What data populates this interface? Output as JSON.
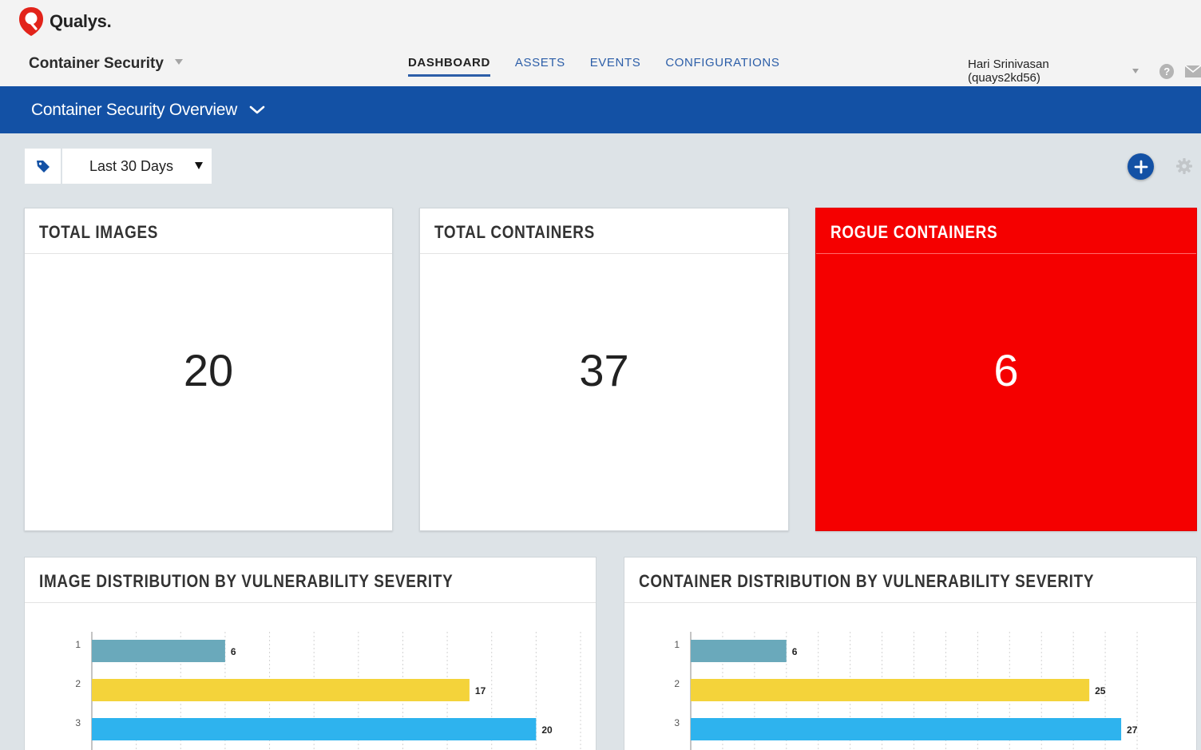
{
  "app": {
    "brand": "Qualys.",
    "module": "Container Security"
  },
  "nav": {
    "tabs": [
      "DASHBOARD",
      "ASSETS",
      "EVENTS",
      "CONFIGURATIONS"
    ],
    "active": "DASHBOARD"
  },
  "user": {
    "name": "Hari Srinivasan (quays2kd56)"
  },
  "dashboard": {
    "title": "Container Security Overview"
  },
  "filters": {
    "date_range": "Last 30 Days"
  },
  "cards": [
    {
      "label": "TOTAL IMAGES",
      "value": "20"
    },
    {
      "label": "TOTAL CONTAINERS",
      "value": "37"
    },
    {
      "label": "ROGUE CONTAINERS",
      "value": "6"
    }
  ],
  "colors": {
    "brand_blue": "#1351a5",
    "rogue_red": "#f50000",
    "sev1": "#6aa9bb",
    "sev2": "#f4d33a",
    "sev3": "#2eb3ee"
  },
  "chart_data": [
    {
      "type": "bar",
      "title": "IMAGE DISTRIBUTION BY VULNERABILITY SEVERITY",
      "orientation": "horizontal",
      "categories": [
        "1",
        "2",
        "3"
      ],
      "values": [
        6,
        17,
        20
      ],
      "xlim": [
        0,
        22
      ],
      "grid": true
    },
    {
      "type": "bar",
      "title": "CONTAINER DISTRIBUTION BY VULNERABILITY SEVERITY",
      "orientation": "horizontal",
      "categories": [
        "1",
        "2",
        "3"
      ],
      "values": [
        6,
        25,
        27
      ],
      "xlim": [
        0,
        28.5
      ],
      "grid": true
    }
  ]
}
